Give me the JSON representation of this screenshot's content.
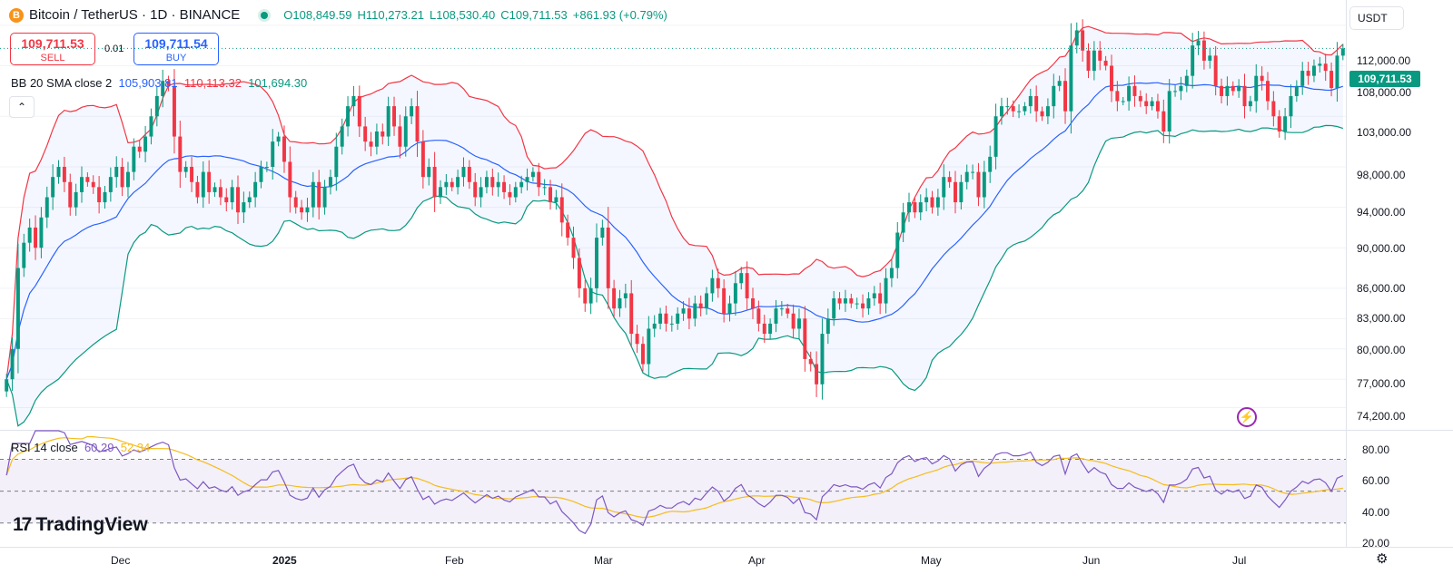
{
  "header": {
    "coin_icon": "B",
    "title": "Bitcoin / TetherUS · 1D · BINANCE",
    "open": "O108,849.59",
    "high": "H110,273.21",
    "low": "L108,530.40",
    "close": "C109,711.53",
    "change": "+861.93 (+0.79%)"
  },
  "trade": {
    "sell_price": "109,711.53",
    "sell_label": "SELL",
    "spread": "0.01",
    "buy_price": "109,711.54",
    "buy_label": "BUY"
  },
  "bb_indicator": {
    "label": "BB 20 SMA close 2",
    "middle": "105,903.81",
    "upper": "110,113.32",
    "lower": "101,694.30"
  },
  "collapse_glyph": "⌃",
  "rsi_indicator": {
    "label": "RSI 14 close",
    "rsi": "60.29",
    "ma": "52.34"
  },
  "currency": "USDT",
  "last_price_tag": "109,711.53",
  "price_axis": [
    "112,000.00",
    "108,000.00",
    "103,000.00",
    "98,000.00",
    "94,000.00",
    "90,000.00",
    "86,000.00",
    "83,000.00",
    "80,000.00",
    "77,000.00",
    "74,200.00"
  ],
  "rsi_axis": [
    "80.00",
    "60.00",
    "40.00",
    "20.00"
  ],
  "time_axis": [
    "Dec",
    "2025",
    "Feb",
    "Mar",
    "Apr",
    "May",
    "Jun",
    "Jul"
  ],
  "logo": {
    "mark": "17",
    "text": "TradingView"
  },
  "colors": {
    "up": "#089981",
    "down": "#f23645",
    "bb_mid": "#2962ff",
    "bb_band": "#f23645",
    "bb_low": "#089981",
    "rsi": "#7e57c2",
    "rsi_ma": "#f5bc1d"
  },
  "icons": {
    "flash": "⚡",
    "settings": "⚙"
  },
  "chart_data": {
    "type": "candlestick",
    "symbol": "BTCUSDT",
    "interval": "1D",
    "x": [
      "Dec",
      "2025",
      "Feb",
      "Mar",
      "Apr",
      "May",
      "Jun",
      "Jul"
    ],
    "ylim": [
      72000,
      114500
    ],
    "closes": [
      77000,
      80000,
      88000,
      90500,
      92000,
      90000,
      93000,
      95000,
      97000,
      98000,
      96500,
      94000,
      95500,
      97000,
      96500,
      96000,
      94500,
      95500,
      97000,
      98000,
      96000,
      97500,
      100000,
      99500,
      101000,
      103000,
      105000,
      106500,
      106000,
      101000,
      97500,
      98000,
      96500,
      95000,
      97500,
      95500,
      96000,
      95000,
      94500,
      96000,
      93500,
      94500,
      95000,
      96500,
      98000,
      98000,
      100500,
      101000,
      98500,
      95000,
      94000,
      93500,
      94000,
      96500,
      94000,
      96000,
      97000,
      100000,
      102000,
      104000,
      105000,
      102000,
      100500,
      100000,
      101500,
      101000,
      104000,
      102000,
      100000,
      103000,
      104000,
      100500,
      97000,
      98000,
      95000,
      96000,
      96500,
      96000,
      97000,
      98000,
      96500,
      95000,
      96000,
      97000,
      96000,
      96500,
      95500,
      95000,
      96000,
      96500,
      97000,
      97500,
      96000,
      96000,
      94500,
      95000,
      92500,
      91000,
      89000,
      86000,
      84500,
      86000,
      91000,
      92000,
      86000,
      84000,
      85000,
      85500,
      81500,
      80500,
      78500,
      82000,
      82500,
      83500,
      82500,
      82500,
      83500,
      84000,
      83000,
      84500,
      84000,
      85500,
      87000,
      86000,
      83500,
      84500,
      86500,
      87500,
      85000,
      84000,
      82500,
      81500,
      82500,
      84000,
      84000,
      83500,
      82000,
      83000,
      79000,
      78500,
      76500,
      81500,
      83000,
      85000,
      84500,
      85000,
      84500,
      84500,
      84000,
      85000,
      85500,
      84500,
      87000,
      88000,
      91500,
      93500,
      94500,
      93500,
      94500,
      95000,
      94000,
      95000,
      97000,
      96500,
      94500,
      96500,
      97500,
      97500,
      95000,
      97500,
      99000,
      103000,
      104000,
      104000,
      103500,
      103500,
      104000,
      105000,
      103500,
      103000,
      104000,
      106000,
      106500,
      103500,
      110000,
      111500,
      109500,
      107500,
      109500,
      108500,
      108000,
      105500,
      104500,
      104500,
      106000,
      105000,
      104500,
      104000,
      104500,
      103500,
      101500,
      105500,
      105500,
      106000,
      107000,
      110000,
      110500,
      108500,
      109000,
      106000,
      105000,
      106000,
      105500,
      106000,
      104000,
      104500,
      107000,
      106500,
      104500,
      103000,
      101500,
      103000,
      105000,
      106000,
      107500,
      107000,
      108000,
      108200,
      107500,
      105800,
      109000,
      109711.53
    ]
  }
}
